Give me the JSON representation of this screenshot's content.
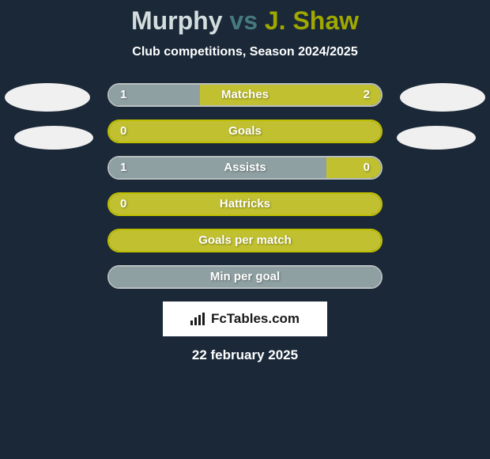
{
  "title": {
    "player1": "Murphy",
    "vs": "vs",
    "player2": "J. Shaw"
  },
  "subtitle": "Club competitions, Season 2024/2025",
  "colors": {
    "p1_border": "#b8bfbf",
    "p1_fill": "#8fa0a2",
    "p2_border": "#bfbf00",
    "p2_fill": "#c0c030",
    "background": "#1a2838"
  },
  "stats": [
    {
      "label": "Matches",
      "left_val": "1",
      "right_val": "2",
      "left_pct": 33.3,
      "right_pct": 66.7,
      "border_color": "#b8bfbf",
      "show_vals": true
    },
    {
      "label": "Goals",
      "left_val": "0",
      "right_val": "",
      "left_pct": 0,
      "right_pct": 100,
      "border_color": "#bfbf00",
      "show_vals": true
    },
    {
      "label": "Assists",
      "left_val": "1",
      "right_val": "0",
      "left_pct": 80,
      "right_pct": 20,
      "border_color": "#b8bfbf",
      "show_vals": true
    },
    {
      "label": "Hattricks",
      "left_val": "0",
      "right_val": "",
      "left_pct": 0,
      "right_pct": 100,
      "border_color": "#bfbf00",
      "show_vals": true
    },
    {
      "label": "Goals per match",
      "left_val": "",
      "right_val": "",
      "left_pct": 0,
      "right_pct": 100,
      "border_color": "#bfbf00",
      "show_vals": false
    },
    {
      "label": "Min per goal",
      "left_val": "",
      "right_val": "",
      "left_pct": 100,
      "right_pct": 0,
      "border_color": "#b8bfbf",
      "show_vals": false
    }
  ],
  "footer": {
    "brand": "FcTables.com",
    "date": "22 february 2025"
  }
}
